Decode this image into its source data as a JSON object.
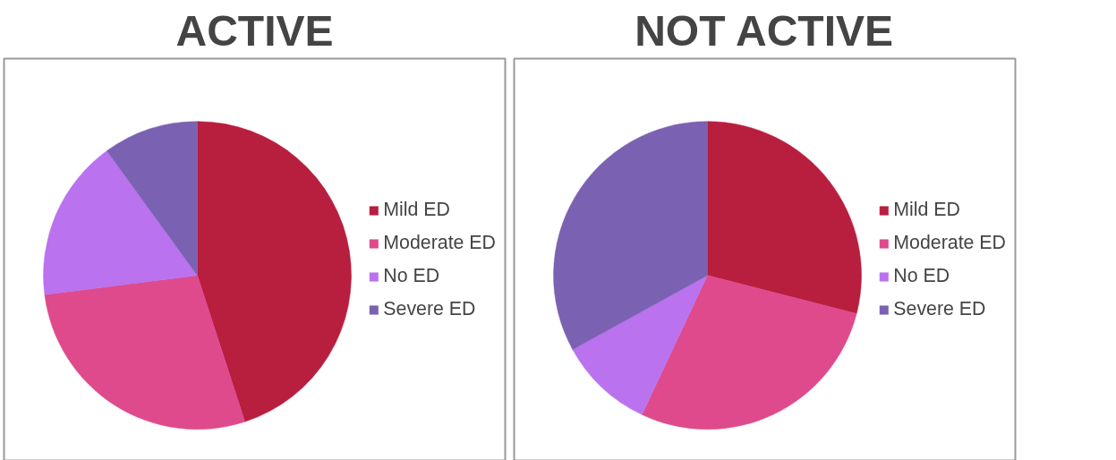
{
  "chart_data": [
    {
      "type": "pie",
      "title": "ACTIVE",
      "categories": [
        "Mild ED",
        "Moderate ED",
        "No ED",
        "Severe ED"
      ],
      "values": [
        45,
        28,
        17,
        10
      ],
      "colors": [
        "#b81e3e",
        "#de4a8c",
        "#ba72ee",
        "#7b61b1"
      ],
      "legend": "right"
    },
    {
      "type": "pie",
      "title": "NOT ACTIVE",
      "categories": [
        "Mild ED",
        "Moderate ED",
        "No ED",
        "Severe ED"
      ],
      "values": [
        29,
        28,
        10,
        33
      ],
      "colors": [
        "#b81e3e",
        "#de4a8c",
        "#ba72ee",
        "#7b61b1"
      ],
      "legend": "right"
    }
  ]
}
